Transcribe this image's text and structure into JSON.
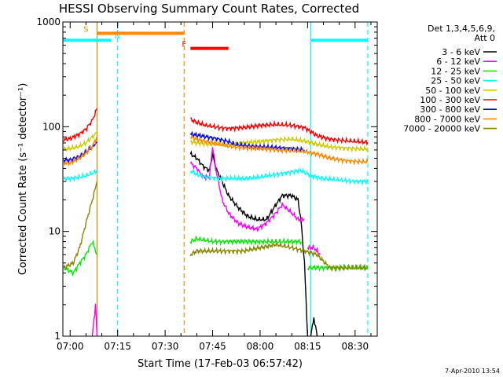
{
  "chart_data": {
    "type": "line",
    "title": "HESSI Observing Summary Count Rates, Corrected",
    "xlabel": "Start Time (17-Feb-03 06:57:42)",
    "ylabel": "Corrected Count Rate (s⁻¹ detector⁻¹)",
    "y_scale": "log",
    "ylim": [
      1,
      1000
    ],
    "y_ticks": [
      {
        "v": 1,
        "label": "1"
      },
      {
        "v": 10,
        "label": "10"
      },
      {
        "v": 100,
        "label": "100"
      },
      {
        "v": 1000,
        "label": "1000"
      }
    ],
    "xlim": [
      "06:57:42",
      "08:37:00"
    ],
    "x_ticks": [
      "07:00",
      "07:15",
      "07:30",
      "07:45",
      "08:00",
      "08:15",
      "08:30"
    ],
    "legend_position": "right",
    "legend_header": [
      "Det 1,3,4,5,6,9,",
      "Att 0"
    ],
    "footer": "7-Apr-2010 13:54",
    "series": [
      {
        "name": "3 - 6 keV",
        "color": "#000000",
        "segments": [
          [
            [
              "07:38",
              55
            ],
            [
              "07:40",
              50
            ],
            [
              "07:42",
              42
            ],
            [
              "07:44",
              38
            ],
            [
              "07:45",
              55
            ],
            [
              "07:46",
              40
            ],
            [
              "07:48",
              30
            ],
            [
              "07:50",
              22
            ],
            [
              "07:53",
              17
            ],
            [
              "07:56",
              14
            ],
            [
              "07:59",
              13
            ],
            [
              "08:02",
              13
            ],
            [
              "08:05",
              18
            ],
            [
              "08:07",
              22
            ],
            [
              "08:10",
              22
            ],
            [
              "08:12",
              20
            ],
            [
              "08:13",
              12
            ],
            [
              "08:14",
              5
            ],
            [
              "08:15",
              1
            ]
          ],
          [
            [
              "08:16",
              1
            ],
            [
              "08:17",
              1.5
            ],
            [
              "08:18",
              1
            ]
          ]
        ]
      },
      {
        "name": "6 - 12 keV",
        "color": "#ff00ff",
        "segments": [
          [
            [
              "07:07",
              1
            ],
            [
              "07:08",
              2
            ],
            [
              "07:08:30",
              1
            ]
          ],
          [
            [
              "07:38",
              45
            ],
            [
              "07:40",
              40
            ],
            [
              "07:42",
              33
            ],
            [
              "07:44",
              33
            ],
            [
              "07:45",
              65
            ],
            [
              "07:46",
              40
            ],
            [
              "07:48",
              20
            ],
            [
              "07:50",
              15
            ],
            [
              "07:53",
              12
            ],
            [
              "07:56",
              11
            ],
            [
              "07:59",
              10.5
            ],
            [
              "08:02",
              12
            ],
            [
              "08:05",
              15
            ],
            [
              "08:07",
              18
            ],
            [
              "08:10",
              15
            ],
            [
              "08:12",
              13
            ],
            [
              "08:14",
              13
            ]
          ],
          [
            [
              "08:15",
              7
            ],
            [
              "08:17",
              7
            ],
            [
              "08:19",
              6
            ]
          ]
        ]
      },
      {
        "name": "12 - 25 keV",
        "color": "#00ee00",
        "segments": [
          [
            [
              "06:58",
              4.5
            ],
            [
              "07:01",
              4
            ],
            [
              "07:03",
              5
            ],
            [
              "07:05",
              6
            ],
            [
              "07:07",
              8
            ],
            [
              "07:08:30",
              6
            ]
          ],
          [
            [
              "07:38",
              8
            ],
            [
              "07:40",
              8.5
            ],
            [
              "07:45",
              8
            ],
            [
              "07:50",
              8
            ],
            [
              "07:55",
              8
            ],
            [
              "08:00",
              8
            ],
            [
              "08:05",
              8
            ],
            [
              "08:10",
              8
            ],
            [
              "08:13",
              8
            ]
          ],
          [
            [
              "08:15",
              4.5
            ],
            [
              "08:20",
              4.5
            ],
            [
              "08:25",
              4.5
            ],
            [
              "08:30",
              4.5
            ],
            [
              "08:34",
              4.5
            ]
          ]
        ]
      },
      {
        "name": "25 - 50 keV",
        "color": "#00ffff",
        "segments": [
          [
            [
              "06:58",
              32
            ],
            [
              "07:00",
              32
            ],
            [
              "07:03",
              33
            ],
            [
              "07:05",
              34
            ],
            [
              "07:07",
              36
            ],
            [
              "07:08:30",
              38
            ]
          ],
          [
            [
              "07:38",
              38
            ],
            [
              "07:40",
              35
            ],
            [
              "07:43",
              33
            ],
            [
              "07:47",
              32
            ],
            [
              "07:50",
              32
            ],
            [
              "07:55",
              32
            ],
            [
              "08:00",
              33
            ],
            [
              "08:05",
              35
            ],
            [
              "08:10",
              37
            ],
            [
              "08:13",
              38
            ],
            [
              "08:16",
              34
            ],
            [
              "08:20",
              32
            ],
            [
              "08:25",
              31
            ],
            [
              "08:30",
              30
            ],
            [
              "08:34",
              30
            ]
          ]
        ]
      },
      {
        "name": "50 - 100 keV",
        "color": "#cccc00",
        "segments": [
          [
            [
              "06:58",
              61
            ],
            [
              "07:00",
              62
            ],
            [
              "07:03",
              65
            ],
            [
              "07:05",
              70
            ],
            [
              "07:07",
              80
            ],
            [
              "07:08:30",
              88
            ]
          ],
          [
            [
              "07:38",
              72
            ],
            [
              "07:40",
              70
            ],
            [
              "07:45",
              68
            ],
            [
              "07:50",
              68
            ],
            [
              "07:55",
              70
            ],
            [
              "08:00",
              72
            ],
            [
              "08:05",
              75
            ],
            [
              "08:10",
              76
            ],
            [
              "08:14",
              73
            ],
            [
              "08:18",
              68
            ],
            [
              "08:22",
              64
            ],
            [
              "08:28",
              62
            ],
            [
              "08:34",
              61
            ]
          ]
        ]
      },
      {
        "name": "100 - 300 keV",
        "color": "#ff0000",
        "segments": [
          [
            [
              "06:58",
              75
            ],
            [
              "07:00",
              77
            ],
            [
              "07:03",
              85
            ],
            [
              "07:05",
              95
            ],
            [
              "07:07",
              115
            ],
            [
              "07:08:30",
              150
            ]
          ],
          [
            [
              "07:38",
              118
            ],
            [
              "07:40",
              110
            ],
            [
              "07:43",
              103
            ],
            [
              "07:47",
              98
            ],
            [
              "07:50",
              96
            ],
            [
              "07:55",
              98
            ],
            [
              "08:00",
              103
            ],
            [
              "08:05",
              105
            ],
            [
              "08:10",
              103
            ],
            [
              "08:14",
              98
            ],
            [
              "08:18",
              82
            ],
            [
              "08:22",
              76
            ],
            [
              "08:28",
              73
            ],
            [
              "08:34",
              71
            ]
          ]
        ]
      },
      {
        "name": "300 - 800 keV",
        "color": "#0000ff",
        "segments": [
          [
            [
              "06:58",
              48
            ],
            [
              "07:00",
              48
            ],
            [
              "07:03",
              52
            ],
            [
              "07:05",
              57
            ],
            [
              "07:07",
              64
            ],
            [
              "07:08:30",
              72
            ]
          ],
          [
            [
              "07:38",
              85
            ],
            [
              "07:40",
              83
            ],
            [
              "07:43",
              80
            ],
            [
              "07:47",
              76
            ],
            [
              "07:50",
              72
            ],
            [
              "07:52",
              68
            ],
            [
              "07:55",
              66
            ],
            [
              "08:00",
              64
            ],
            [
              "08:05",
              63
            ],
            [
              "08:10",
              62
            ],
            [
              "08:14",
              60
            ]
          ]
        ]
      },
      {
        "name": "800 - 7000 keV",
        "color": "#ff8800",
        "segments": [
          [
            [
              "06:58",
              45
            ],
            [
              "07:00",
              45
            ],
            [
              "07:03",
              50
            ],
            [
              "07:05",
              56
            ],
            [
              "07:07",
              65
            ],
            [
              "07:08:30",
              80
            ]
          ],
          [
            [
              "07:38",
              80
            ],
            [
              "07:40",
              76
            ],
            [
              "07:43",
              72
            ],
            [
              "07:47",
              68
            ],
            [
              "07:50",
              65
            ],
            [
              "07:55",
              63
            ],
            [
              "08:00",
              62
            ],
            [
              "08:05",
              60
            ],
            [
              "08:10",
              59
            ],
            [
              "08:14",
              58
            ],
            [
              "08:18",
              55
            ],
            [
              "08:22",
              50
            ],
            [
              "08:28",
              47
            ],
            [
              "08:34",
              46
            ]
          ]
        ]
      },
      {
        "name": "7000 - 20000 keV",
        "color": "#888800",
        "segments": [
          [
            [
              "06:58",
              4.5
            ],
            [
              "07:01",
              5
            ],
            [
              "07:03",
              7
            ],
            [
              "07:05",
              12
            ],
            [
              "07:07",
              20
            ],
            [
              "07:08:30",
              30
            ]
          ],
          [
            [
              "07:38",
              6
            ],
            [
              "07:40",
              6.5
            ],
            [
              "07:45",
              6.5
            ],
            [
              "07:50",
              6.5
            ],
            [
              "07:55",
              6.5
            ],
            [
              "08:00",
              7
            ],
            [
              "08:05",
              7.5
            ],
            [
              "08:10",
              7
            ],
            [
              "08:14",
              6.5
            ],
            [
              "08:18",
              6
            ],
            [
              "08:22",
              4.5
            ],
            [
              "08:28",
              4.5
            ],
            [
              "08:34",
              4.5
            ]
          ]
        ]
      }
    ],
    "observing_bars": [
      {
        "label": "N",
        "color": "#00ffff",
        "value": 670,
        "from": "06:57:42",
        "to": "07:13",
        "label_at": "07:15"
      },
      {
        "label": "N",
        "color": "#00ffff",
        "value": 670,
        "from": "08:16",
        "to": "08:34"
      },
      {
        "label": "S",
        "color": "#ff8800",
        "value": 780,
        "from": "07:08:30",
        "to": "07:36",
        "label_at": "07:05"
      },
      {
        "label": "F",
        "color": "#ff0000",
        "value": 560,
        "from": "07:38",
        "to": "07:50",
        "label_at": "07:36"
      }
    ],
    "vertical_markers": [
      {
        "time": "07:08:30",
        "color": "#cc8800",
        "style": "solid"
      },
      {
        "time": "07:15",
        "color": "#00ffff",
        "style": "dashed"
      },
      {
        "time": "07:36",
        "color": "#ff8800",
        "style": "dashed"
      },
      {
        "time": "08:16",
        "color": "#00ffff",
        "style": "solid"
      },
      {
        "time": "08:34",
        "color": "#00ffff",
        "style": "dashed"
      }
    ]
  }
}
